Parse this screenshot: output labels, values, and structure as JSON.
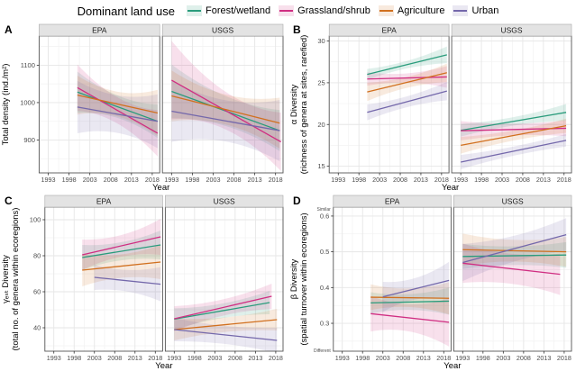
{
  "legend": {
    "title": "Dominant land use",
    "items": [
      {
        "label": "Forest/wetland",
        "color": "#2a9c7c"
      },
      {
        "label": "Grassland/shrub",
        "color": "#d02e82"
      },
      {
        "label": "Agriculture",
        "color": "#d1701f"
      },
      {
        "label": "Urban",
        "color": "#7468ab"
      }
    ]
  },
  "chart_data": [
    {
      "panel": "A",
      "type": "line",
      "ylabel": [
        "Total density (ind./m²)"
      ],
      "ylim": [
        812,
        1178
      ],
      "yticks": [
        "900",
        "1000",
        "1100"
      ],
      "xlim": [
        1990.8,
        2019.8
      ],
      "xticks": [
        "1993",
        "1998",
        "2003",
        "2008",
        "2013",
        "2018"
      ],
      "xlabel": "Year",
      "y_annotations": [],
      "facets": [
        {
          "name": "EPA",
          "series": [
            {
              "name": "Forest/wetland",
              "x": [
                2000,
                2019.3
              ],
              "y": [
                1028,
                950
              ],
              "band": [
                55,
                30,
                45
              ]
            },
            {
              "name": "Grassland/shrub",
              "x": [
                2000,
                2019.3
              ],
              "y": [
                1040,
                918
              ],
              "band": [
                62,
                35,
                62
              ]
            },
            {
              "name": "Agriculture",
              "x": [
                2000,
                2019.3
              ],
              "y": [
                1020,
                972
              ],
              "band": [
                52,
                33,
                62
              ]
            },
            {
              "name": "Urban",
              "x": [
                2000,
                2019.3
              ],
              "y": [
                988,
                950
              ],
              "band": [
                70,
                50,
                72
              ]
            }
          ]
        },
        {
          "name": "USGS",
          "series": [
            {
              "name": "Forest/wetland",
              "x": [
                1993,
                2019
              ],
              "y": [
                1030,
                925
              ],
              "band": [
                72,
                40,
                55
              ]
            },
            {
              "name": "Grassland/shrub",
              "x": [
                1993,
                2019.3
              ],
              "y": [
                1060,
                895
              ],
              "band": [
                105,
                50,
                78
              ]
            },
            {
              "name": "Agriculture",
              "x": [
                1993,
                2019
              ],
              "y": [
                1018,
                945
              ],
              "band": [
                68,
                40,
                68
              ]
            },
            {
              "name": "Urban",
              "x": [
                1993,
                2019
              ],
              "y": [
                977,
                925
              ],
              "band": [
                82,
                55,
                82
              ]
            }
          ]
        }
      ]
    },
    {
      "panel": "B",
      "type": "line",
      "ylabel": [
        "α Diversity",
        "(richness of genera at sites, rarefied)"
      ],
      "ylim": [
        14.2,
        30.6
      ],
      "yticks": [
        "15",
        "20",
        "25",
        "30"
      ],
      "xlim": [
        1990.8,
        2019.8
      ],
      "xticks": [
        "1993",
        "1998",
        "2003",
        "2008",
        "2013",
        "2018"
      ],
      "xlabel": "Year",
      "y_annotations": [],
      "facets": [
        {
          "name": "EPA",
          "series": [
            {
              "name": "Forest/wetland",
              "x": [
                2000,
                2019.3
              ],
              "y": [
                26.0,
                28.35
              ],
              "band": [
                0.65,
                0.45,
                1.0
              ]
            },
            {
              "name": "Grassland/shrub",
              "x": [
                2000,
                2019.3
              ],
              "y": [
                25.45,
                25.7
              ],
              "band": [
                0.8,
                0.55,
                1.3
              ]
            },
            {
              "name": "Agriculture",
              "x": [
                2000,
                2019.3
              ],
              "y": [
                23.9,
                26.2
              ],
              "band": [
                1.1,
                0.65,
                1.1
              ]
            },
            {
              "name": "Urban",
              "x": [
                2000,
                2019.3
              ],
              "y": [
                21.45,
                24.0
              ],
              "band": [
                0.95,
                0.65,
                1.1
              ]
            }
          ]
        },
        {
          "name": "USGS",
          "series": [
            {
              "name": "Forest/wetland",
              "x": [
                1993,
                2018.5
              ],
              "y": [
                19.3,
                21.45
              ],
              "band": [
                0.75,
                0.5,
                1.0
              ]
            },
            {
              "name": "Grassland/shrub",
              "x": [
                1993,
                2018.5
              ],
              "y": [
                19.25,
                19.55
              ],
              "band": [
                1.15,
                0.7,
                0.95
              ]
            },
            {
              "name": "Agriculture",
              "x": [
                1993,
                2018.5
              ],
              "y": [
                17.5,
                19.85
              ],
              "band": [
                1.0,
                0.6,
                0.85
              ]
            },
            {
              "name": "Urban",
              "x": [
                1993,
                2018.5
              ],
              "y": [
                15.5,
                18.1
              ],
              "band": [
                0.85,
                0.55,
                0.75
              ]
            }
          ]
        }
      ]
    },
    {
      "panel": "C",
      "type": "line",
      "ylabel": [
        "γₑₛₜ Diversity",
        "(total no. of genera within ecoregions)"
      ],
      "ylim": [
        27,
        107
      ],
      "yticks": [
        "40",
        "60",
        "80",
        "100"
      ],
      "xlim": [
        1990.8,
        2019.8
      ],
      "xticks": [
        "1993",
        "1998",
        "2003",
        "2008",
        "2013",
        "2018"
      ],
      "xlabel": "Year",
      "y_annotations": [],
      "facets": [
        {
          "name": "EPA",
          "series": [
            {
              "name": "Forest/wetland",
              "x": [
                2000,
                2019.3
              ],
              "y": [
                79,
                86
              ],
              "band": [
                7,
                5,
                8
              ]
            },
            {
              "name": "Grassland/shrub",
              "x": [
                2000,
                2019.3
              ],
              "y": [
                80.5,
                90.5
              ],
              "band": [
                8.5,
                6,
                10
              ]
            },
            {
              "name": "Agriculture",
              "x": [
                2000,
                2019.3
              ],
              "y": [
                72,
                76.5
              ],
              "band": [
                9,
                6.5,
                9.5
              ]
            },
            {
              "name": "Urban",
              "x": [
                2003,
                2019.3
              ],
              "y": [
                68,
                64.2
              ],
              "band": [
                7,
                6,
                9.5
              ]
            }
          ]
        },
        {
          "name": "USGS",
          "series": [
            {
              "name": "Forest/wetland",
              "x": [
                1993,
                2016.5
              ],
              "y": [
                44.8,
                54
              ],
              "band": [
                6,
                4,
                6.5
              ]
            },
            {
              "name": "Grassland/shrub",
              "x": [
                1993,
                2017
              ],
              "y": [
                45,
                57.5
              ],
              "band": [
                7,
                4.5,
                7
              ]
            },
            {
              "name": "Agriculture",
              "x": [
                1993,
                2018.3
              ],
              "y": [
                39,
                44.5
              ],
              "band": [
                6,
                4,
                6
              ]
            },
            {
              "name": "Urban",
              "x": [
                1993,
                2018.3
              ],
              "y": [
                39,
                33
              ],
              "band": [
                6.5,
                5,
                7
              ]
            }
          ]
        }
      ]
    },
    {
      "panel": "D",
      "type": "line",
      "ylabel": [
        "β Diversity",
        "(spatial turnover within ecoregions)"
      ],
      "ylim": [
        0.222,
        0.625
      ],
      "yticks": [
        "0.3",
        "0.4",
        "0.5",
        "0.6"
      ],
      "xlim": [
        1990.8,
        2019.8
      ],
      "xticks": [
        "1993",
        "1998",
        "2003",
        "2008",
        "2013",
        "2018"
      ],
      "xlabel": "Year",
      "y_annotations": [
        {
          "label": "Similar",
          "pos": "top"
        },
        {
          "label": "Different",
          "pos": "bottom"
        }
      ],
      "facets": [
        {
          "name": "EPA",
          "series": [
            {
              "name": "Forest/wetland",
              "x": [
                2000,
                2019.3
              ],
              "y": [
                0.357,
                0.362
              ],
              "band": [
                0.03,
                0.022,
                0.038
              ]
            },
            {
              "name": "Grassland/shrub",
              "x": [
                2000,
                2019.3
              ],
              "y": [
                0.327,
                0.303
              ],
              "band": [
                0.05,
                0.038,
                0.068
              ]
            },
            {
              "name": "Agriculture",
              "x": [
                2000,
                2019.3
              ],
              "y": [
                0.373,
                0.37
              ],
              "band": [
                0.036,
                0.026,
                0.045
              ]
            },
            {
              "name": "Urban",
              "x": [
                2003,
                2019.3
              ],
              "y": [
                0.374,
                0.42
              ],
              "band": [
                0.042,
                0.03,
                0.052
              ]
            }
          ]
        },
        {
          "name": "USGS",
          "series": [
            {
              "name": "Forest/wetland",
              "x": [
                1993,
                2018.5
              ],
              "y": [
                0.487,
                0.491
              ],
              "band": [
                0.035,
                0.026,
                0.036
              ]
            },
            {
              "name": "Grassland/shrub",
              "x": [
                1993,
                2017
              ],
              "y": [
                0.468,
                0.437
              ],
              "band": [
                0.055,
                0.042,
                0.058
              ]
            },
            {
              "name": "Agriculture",
              "x": [
                1993,
                2018.5
              ],
              "y": [
                0.506,
                0.5
              ],
              "band": [
                0.045,
                0.03,
                0.042
              ]
            },
            {
              "name": "Urban",
              "x": [
                1993,
                2018.5
              ],
              "y": [
                0.47,
                0.548
              ],
              "band": [
                0.052,
                0.036,
                0.046
              ]
            }
          ]
        }
      ]
    }
  ]
}
